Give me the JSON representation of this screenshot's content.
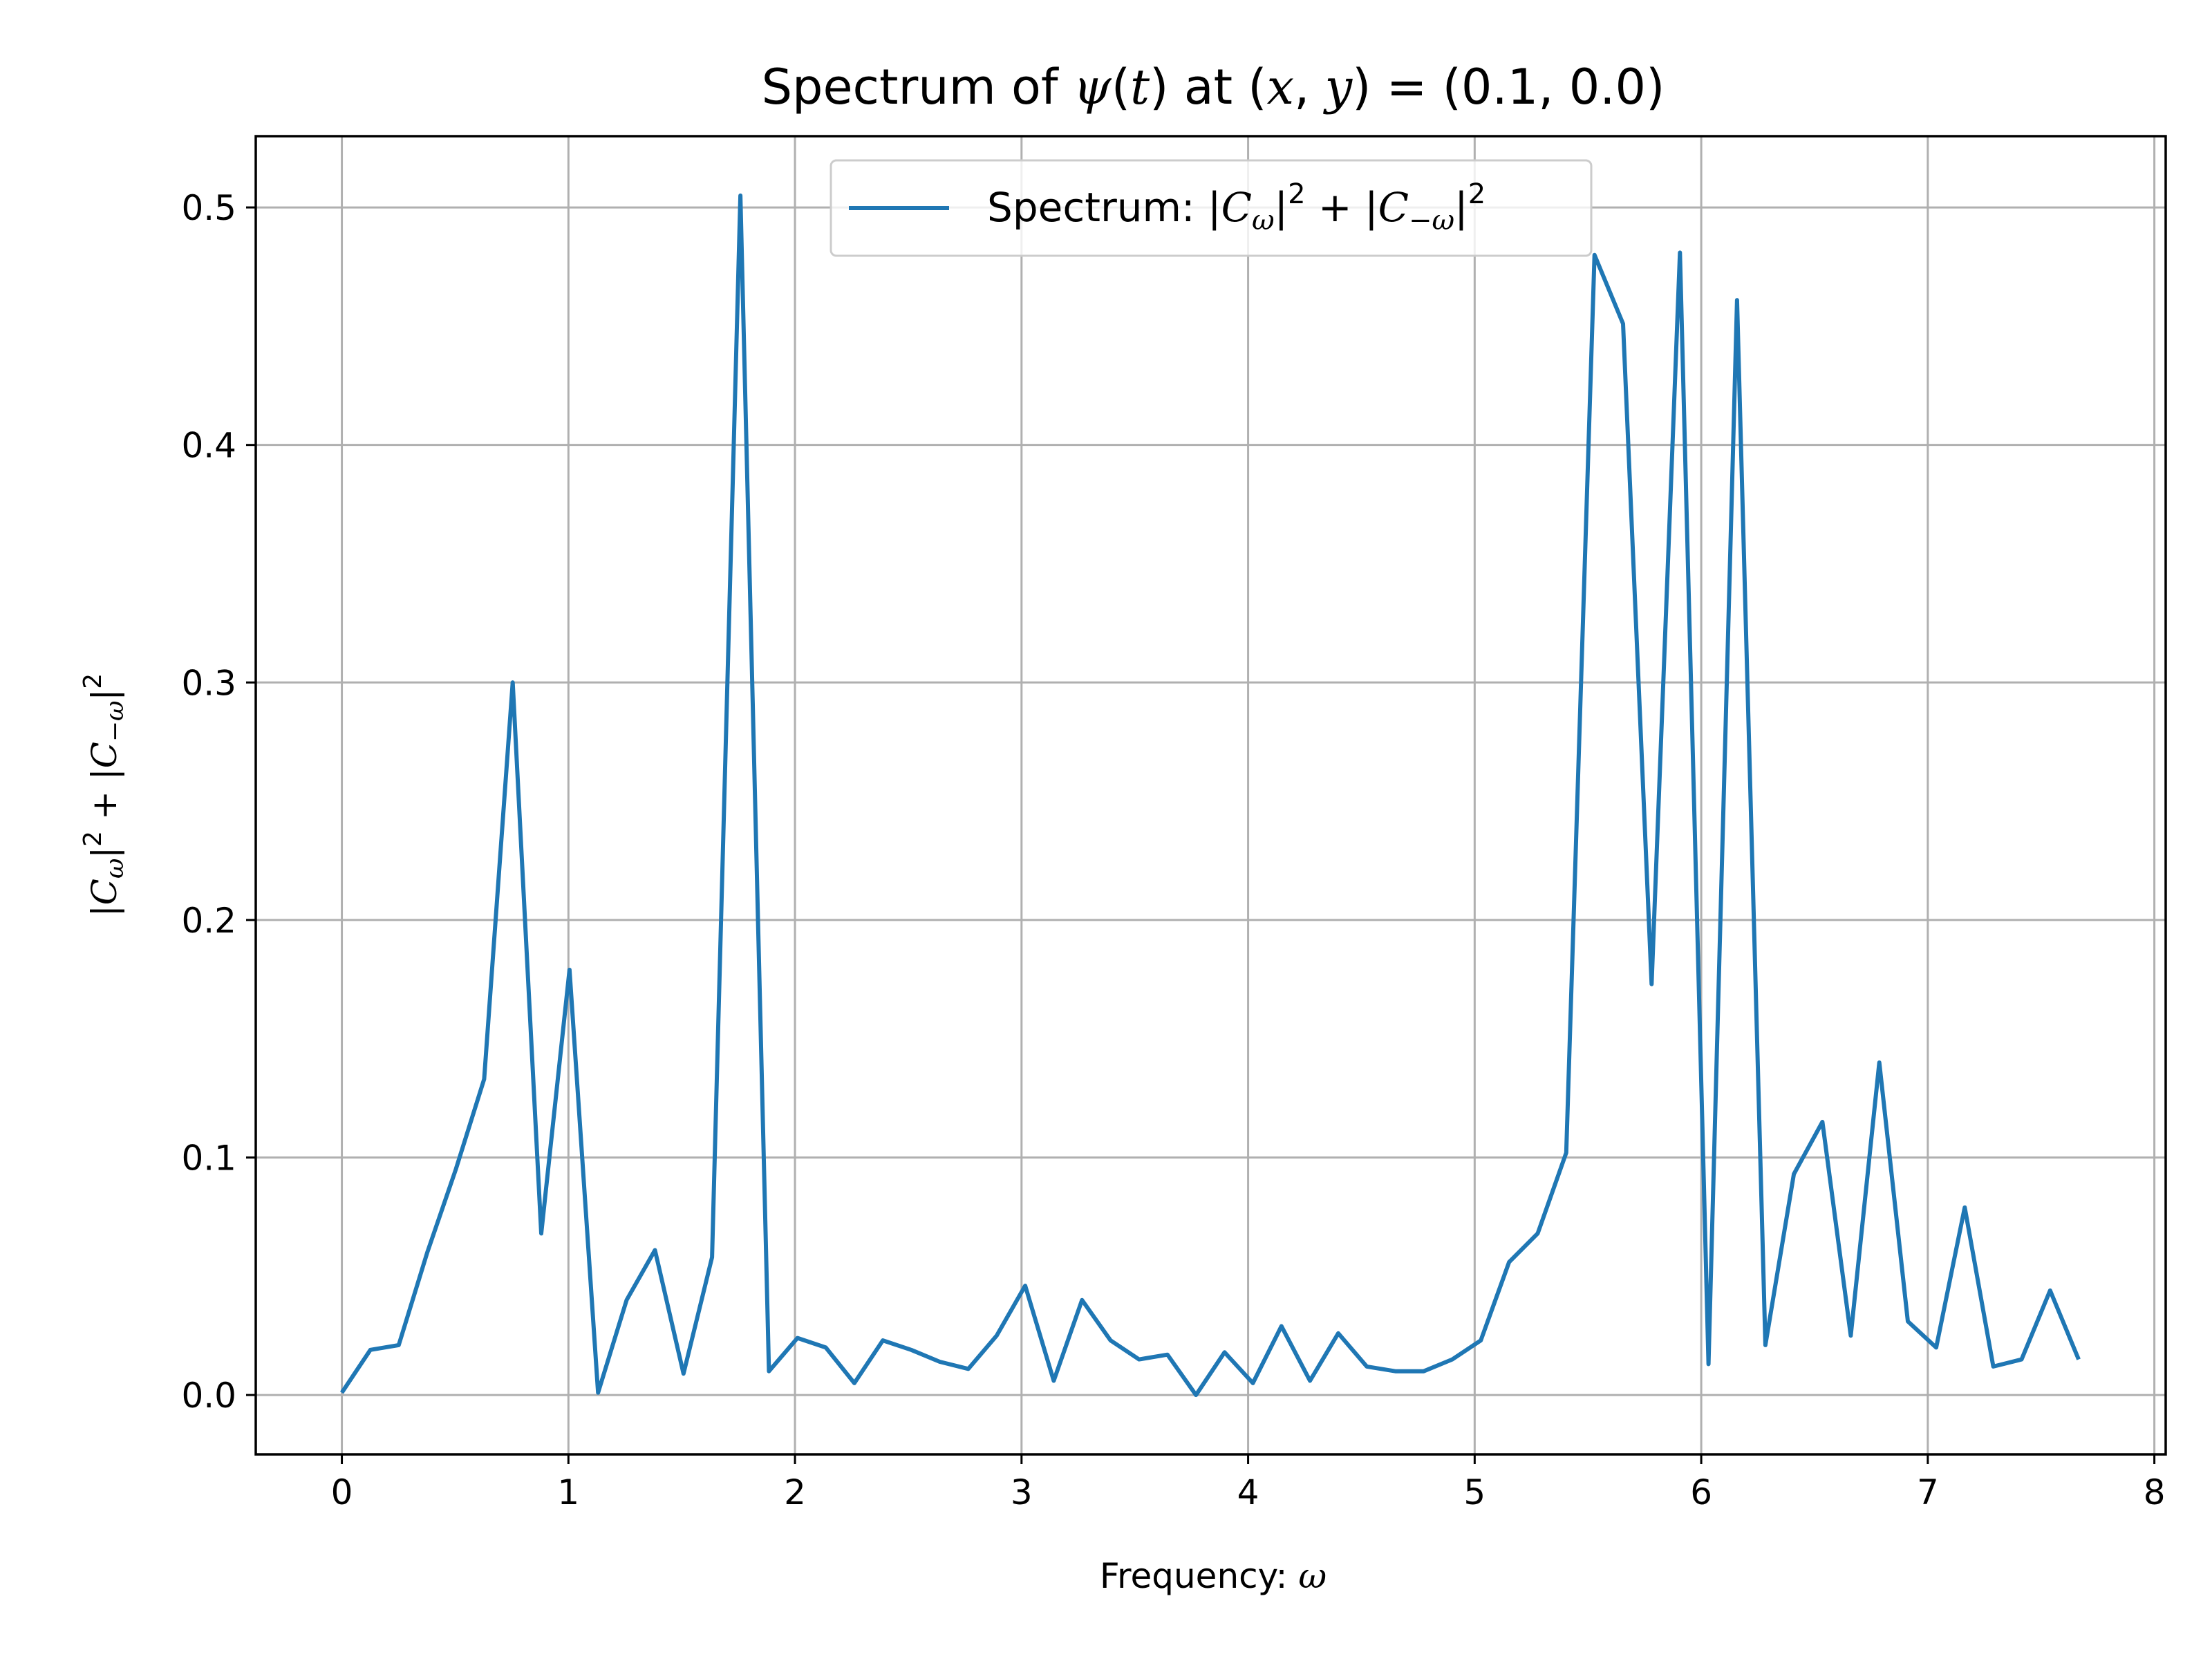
{
  "chart_data": {
    "type": "line",
    "title": "Spectrum of ψ(t) at (x, y) = (0.1, 0.0)",
    "title_parts": {
      "prefix": "Spectrum of ",
      "psi": "ψ",
      "t_open": "(",
      "t": "t",
      "t_close": ")",
      "at": " at (",
      "x": "x",
      "comma": ", ",
      "y": "y",
      "equals": ") = (0.1, 0.0)"
    },
    "xlabel": "Frequency: ω",
    "xlabel_parts": {
      "text": "Frequency: ",
      "omega": "ω"
    },
    "ylabel": "|Cω|² + |C−ω|²",
    "ylabel_parts": {
      "bar1": "|",
      "c1": "C",
      "sub1": "ω",
      "bar2": "|",
      "sup1": "2",
      "plus": " + |",
      "c2": "C",
      "sub2": "−ω",
      "bar3": "|",
      "sup2": "2"
    },
    "xlim": [
      -0.38,
      8.05
    ],
    "ylim": [
      -0.025,
      0.53
    ],
    "xticks": [
      0,
      1,
      2,
      3,
      4,
      5,
      6,
      7,
      8
    ],
    "xtick_labels": [
      "0",
      "1",
      "2",
      "3",
      "4",
      "5",
      "6",
      "7",
      "8"
    ],
    "yticks": [
      0.0,
      0.1,
      0.2,
      0.3,
      0.4,
      0.5
    ],
    "ytick_labels": [
      "0.0",
      "0.1",
      "0.2",
      "0.3",
      "0.4",
      "0.5"
    ],
    "grid": true,
    "legend_position": "upper center",
    "series": [
      {
        "name": "Spectrum: |Cω|² + |C−ω|²",
        "name_parts": {
          "text": "Spectrum: |",
          "c1": "C",
          "sub1": "ω",
          "bar": "|",
          "sup1": "2",
          "plus": " + |",
          "c2": "C",
          "sub2": "−ω",
          "bar2": "|",
          "sup2": "2"
        },
        "color": "#1f77b4",
        "x": [
          0.0,
          0.126,
          0.251,
          0.377,
          0.503,
          0.628,
          0.754,
          0.88,
          1.005,
          1.131,
          1.257,
          1.382,
          1.508,
          1.634,
          1.759,
          1.885,
          2.011,
          2.136,
          2.262,
          2.388,
          2.513,
          2.639,
          2.765,
          2.89,
          3.016,
          3.142,
          3.267,
          3.393,
          3.519,
          3.644,
          3.77,
          3.896,
          4.021,
          4.147,
          4.273,
          4.398,
          4.524,
          4.65,
          4.775,
          4.901,
          5.027,
          5.152,
          5.278,
          5.404,
          5.529,
          5.655,
          5.781,
          5.906,
          6.032,
          6.158,
          6.283,
          6.409,
          6.535,
          6.66,
          6.786,
          6.912,
          7.037,
          7.163,
          7.289,
          7.414,
          7.54,
          7.666
        ],
        "y": [
          0.001,
          0.019,
          0.021,
          0.06,
          0.095,
          0.133,
          0.3,
          0.068,
          0.179,
          0.001,
          0.04,
          0.061,
          0.009,
          0.058,
          0.505,
          0.01,
          0.024,
          0.02,
          0.005,
          0.023,
          0.019,
          0.014,
          0.011,
          0.025,
          0.046,
          0.006,
          0.04,
          0.023,
          0.015,
          0.017,
          0.0,
          0.018,
          0.005,
          0.029,
          0.006,
          0.026,
          0.012,
          0.01,
          0.01,
          0.015,
          0.023,
          0.056,
          0.068,
          0.102,
          0.48,
          0.451,
          0.173,
          0.481,
          0.013,
          0.461,
          0.021,
          0.093,
          0.115,
          0.025,
          0.14,
          0.031,
          0.02,
          0.079,
          0.012,
          0.015,
          0.044,
          0.015
        ]
      }
    ]
  }
}
